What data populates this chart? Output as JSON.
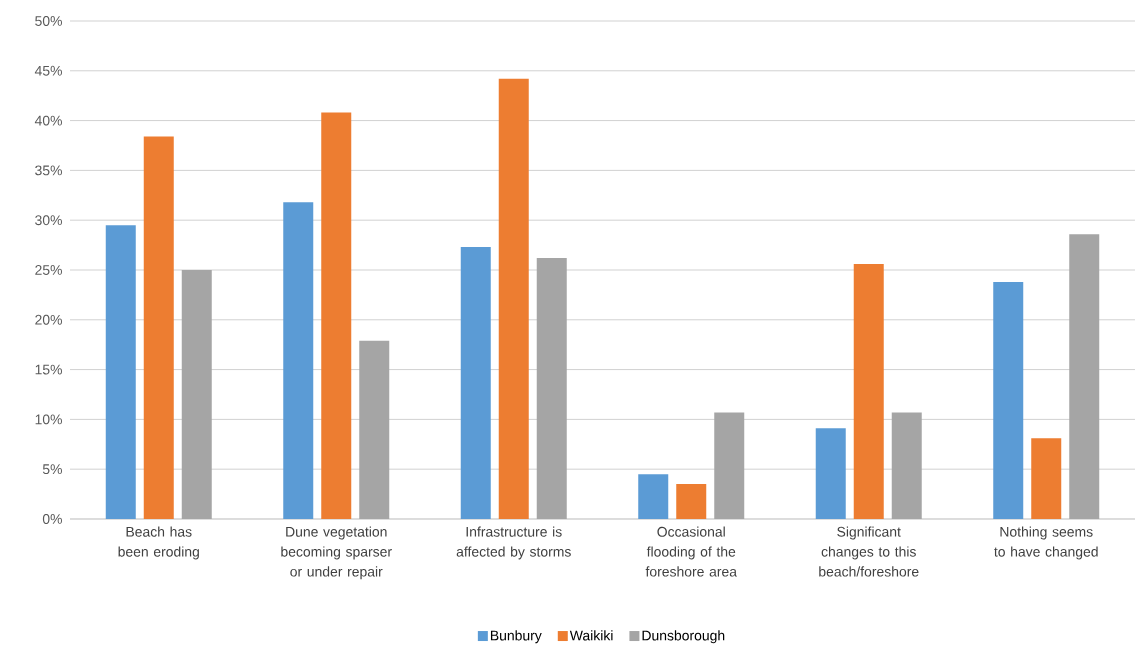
{
  "chart_data": {
    "type": "bar",
    "categories": [
      "Beach has been eroding",
      "Dune vegetation becoming sparser or under repair",
      "Infrastructure is affected by storms",
      "Occasional flooding of the foreshore area",
      "Significant changes to this beach/foreshore",
      "Nothing seems to have changed"
    ],
    "series": [
      {
        "name": "Bunbury",
        "color": "#5b9bd5",
        "values": [
          29.5,
          31.8,
          27.3,
          4.5,
          9.1,
          23.8
        ]
      },
      {
        "name": "Waikiki",
        "color": "#ed7d31",
        "values": [
          38.4,
          40.8,
          44.2,
          3.5,
          25.6,
          8.1
        ]
      },
      {
        "name": "Dunsborough",
        "color": "#a5a5a5",
        "values": [
          25.0,
          17.9,
          26.2,
          10.7,
          10.7,
          28.6
        ]
      }
    ],
    "ylim": [
      0,
      50
    ],
    "yticks": [
      {
        "value": 0,
        "label": "0%"
      },
      {
        "value": 5,
        "label": "5%"
      },
      {
        "value": 10,
        "label": "10%"
      },
      {
        "value": 15,
        "label": "15%"
      },
      {
        "value": 20,
        "label": "20%"
      },
      {
        "value": 25,
        "label": "25%"
      },
      {
        "value": 30,
        "label": "30%"
      },
      {
        "value": 35,
        "label": "35%"
      },
      {
        "value": 40,
        "label": "40%"
      },
      {
        "value": 45,
        "label": "45%"
      },
      {
        "value": 50,
        "label": "50%"
      }
    ],
    "grid": "y",
    "legend": "bottom"
  }
}
